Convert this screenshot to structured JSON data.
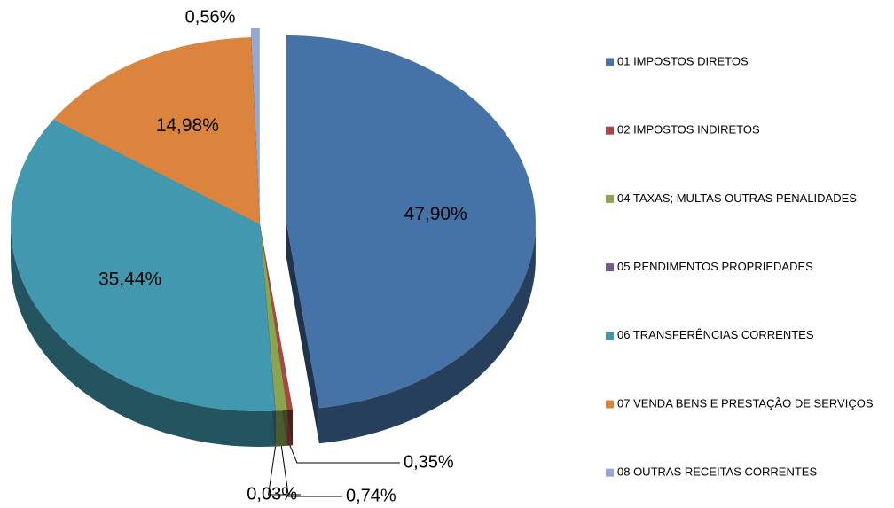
{
  "chart_data": {
    "type": "pie",
    "categories": [
      "01 IMPOSTOS DIRETOS",
      "02 IMPOSTOS INDIRETOS",
      "04 TAXAS; MULTAS OUTRAS PENALIDADES",
      "05 RENDIMENTOS PROPRIEDADES",
      "06 TRANSFERÊNCIAS CORRENTES",
      "07 VENDA BENS E PRESTAÇÃO DE SERVIÇOS",
      "08 OUTRAS RECEITAS CORRENTES"
    ],
    "values": [
      47.9,
      0.35,
      0.74,
      0.03,
      35.44,
      14.98,
      0.56
    ],
    "value_labels": [
      "47,90%",
      "0,35%",
      "0,74%",
      "0,03%",
      "35,44%",
      "14,98%",
      "0,56%"
    ],
    "colors": [
      "#4572a7",
      "#aa4643",
      "#89a54e",
      "#71588f",
      "#4198af",
      "#db843d",
      "#93a9cf"
    ],
    "legend": "right"
  }
}
